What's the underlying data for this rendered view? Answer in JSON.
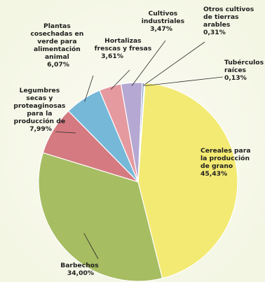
{
  "chart_data": {
    "type": "pie",
    "title": "",
    "slices": [
      {
        "label": "Cereales para la producción de grano",
        "value": 45.43,
        "value_label": "45,43%",
        "color": "#f3ea73"
      },
      {
        "label": "Barbechos",
        "value": 34.0,
        "value_label": "34,00%",
        "color": "#a6bd62"
      },
      {
        "label": "Legumbres secas y proteaginosas para la producción de grano",
        "value": 7.99,
        "value_label": "7,99%",
        "color": "#d47a80"
      },
      {
        "label": "Plantas cosechadas en verde para alimentación animal",
        "value": 6.07,
        "value_label": "6,07%",
        "color": "#76b8d8"
      },
      {
        "label": "Hortalizas frescas y fresas",
        "value": 3.61,
        "value_label": "3,61%",
        "color": "#e59aa0"
      },
      {
        "label": "Cultivos industriales",
        "value": 3.47,
        "value_label": "3,47%",
        "color": "#b5a8d2"
      },
      {
        "label": "Otros cultivos de tierras arables",
        "value": 0.31,
        "value_label": "0,31%",
        "color": "#7e9ec9"
      },
      {
        "label": "Tubérculos raíces",
        "value": 0.13,
        "value_label": "0,13%",
        "color": "#c8c8b0"
      }
    ]
  }
}
